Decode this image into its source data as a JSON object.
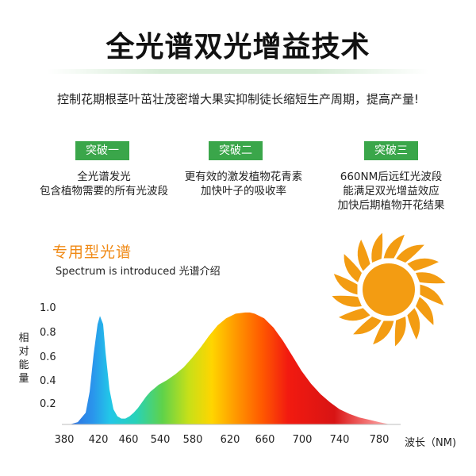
{
  "header": {
    "title": "全光谱双光增益技术",
    "subtitle": "控制花期根茎叶茁壮茂密增大果实抑制徒长缩短生产周期，提高产量!"
  },
  "breakthroughs": [
    {
      "label": "突破一",
      "lines": [
        "全光谱发光",
        "包含植物需要的所有光波段"
      ]
    },
    {
      "label": "突破二",
      "lines": [
        "更有效的激发植物花青素",
        "加快叶子的吸收率"
      ]
    },
    {
      "label": "突破三",
      "lines": [
        "660NM后远红光波段",
        "能满足双光增益效应",
        "加快后期植物开花结果"
      ]
    }
  ],
  "spectrum": {
    "title": "专用型光谱",
    "subtitle": "Spectrum is introduced  光谱介绍"
  },
  "chart_data": {
    "type": "area",
    "ylabel": "相对能量",
    "xlabel": "波长（NM)",
    "y_ticks": [
      "1.0",
      "0.8",
      "0.6",
      "0.4",
      "0.2"
    ],
    "x_ticks": [
      "380",
      "420",
      "460",
      "540",
      "580",
      "620",
      "660",
      "700",
      "740",
      "780"
    ],
    "ylim": [
      0,
      1.0
    ],
    "xlim": [
      380,
      800
    ],
    "series": [
      {
        "x": [
          390,
          400,
          410,
          415,
          420,
          425,
          428,
          432,
          435,
          440,
          445,
          450,
          455,
          460,
          470,
          480,
          490,
          500,
          510,
          520,
          530,
          540,
          550,
          560,
          570,
          580,
          590,
          600,
          610,
          620,
          630,
          640,
          645,
          650,
          660,
          670,
          680,
          690,
          700,
          710,
          720,
          730,
          740,
          750,
          760,
          770,
          780,
          790
        ],
        "y": [
          0.0,
          0.02,
          0.1,
          0.28,
          0.6,
          0.86,
          0.93,
          0.86,
          0.62,
          0.3,
          0.13,
          0.07,
          0.05,
          0.05,
          0.07,
          0.1,
          0.14,
          0.19,
          0.24,
          0.28,
          0.31,
          0.34,
          0.38,
          0.43,
          0.49,
          0.57,
          0.66,
          0.76,
          0.85,
          0.91,
          0.95,
          0.96,
          0.96,
          0.95,
          0.91,
          0.83,
          0.72,
          0.59,
          0.46,
          0.35,
          0.26,
          0.19,
          0.13,
          0.09,
          0.06,
          0.04,
          0.02,
          0.0
        ]
      }
    ]
  },
  "colors": {
    "badge": "#3aa64a",
    "accent": "#f08a16",
    "sun": "#f39c12"
  },
  "icons": {
    "sun": "sun-icon"
  }
}
